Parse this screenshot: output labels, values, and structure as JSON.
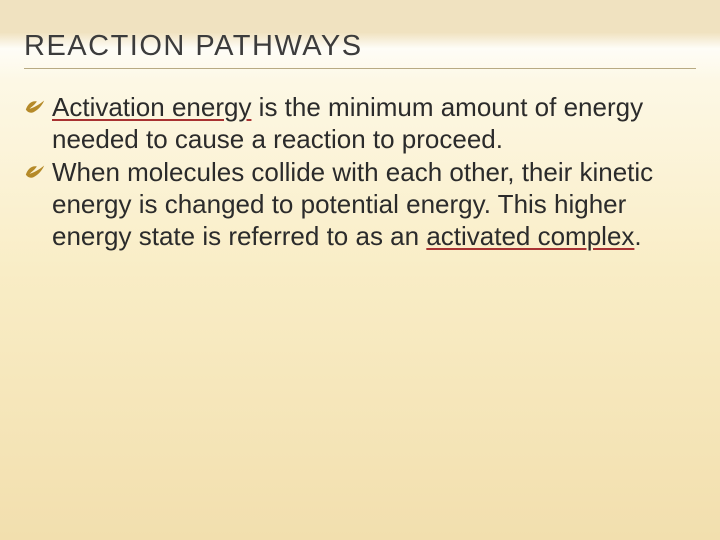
{
  "slide": {
    "title": "REACTION PATHWAYS",
    "title_color": "#3c3c3c",
    "title_fontsize": 29,
    "title_letter_spacing": 1.5,
    "underline_color": "#a83232",
    "bullet_icon_color": "#b58a29",
    "text_color": "#2b2b2b",
    "body_fontsize": 26,
    "background_gradient": [
      "#f0e2c0",
      "#fefdf7",
      "#fdf8e5",
      "#f9edc6",
      "#f2dfae"
    ],
    "bullets": [
      {
        "runs": [
          {
            "text": "Activation energy",
            "underline": true
          },
          {
            "text": " is the minimum amount of energy needed to cause a reaction to proceed.",
            "underline": false
          }
        ]
      },
      {
        "runs": [
          {
            "text": "When molecules collide with each other, their kinetic energy is changed to potential energy.  This higher energy state is referred to as an ",
            "underline": false
          },
          {
            "text": "activated complex",
            "underline": true
          },
          {
            "text": ".",
            "underline": false
          }
        ]
      }
    ]
  }
}
